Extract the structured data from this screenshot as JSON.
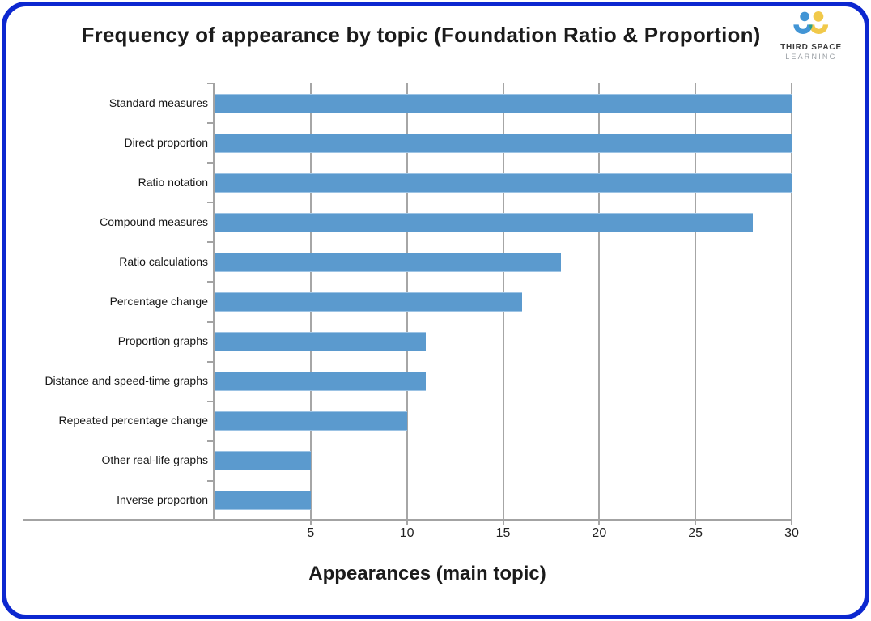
{
  "page": {
    "background_color": "#ffffff",
    "border_color": "#0c27d0"
  },
  "logo": {
    "brand_line1": "THIRD SPACE",
    "brand_line2": "LEARNING",
    "icon": "two-people-logo",
    "icon_colors": {
      "blue": "#4295d5",
      "yellow": "#f1c94a",
      "teal": "#2ba08e"
    }
  },
  "chart_data": {
    "type": "bar",
    "orientation": "horizontal",
    "title": "Frequency of appearance by topic (Foundation Ratio & Proportion)",
    "xlabel": "Appearances (main topic)",
    "categories": [
      "Standard measures",
      "Direct proportion",
      "Ratio notation",
      "Compound measures",
      "Ratio calculations",
      "Percentage change",
      "Proportion graphs",
      "Distance and speed-time graphs",
      "Repeated percentage change",
      "Other real-life graphs",
      "Inverse proportion"
    ],
    "values": [
      30,
      30,
      30,
      28,
      18,
      16,
      11,
      11,
      10,
      5,
      5
    ],
    "xlim": [
      0,
      30
    ],
    "xticks": [
      5,
      10,
      15,
      20,
      25,
      30
    ],
    "grid": "vertical-gridlines-behind-bars",
    "legend": "none",
    "bar_color": "#5b9ace",
    "axis_color": "#a3a3a3",
    "gridline_color": "#a6a6a6",
    "text_color": "#1b1b1b"
  }
}
